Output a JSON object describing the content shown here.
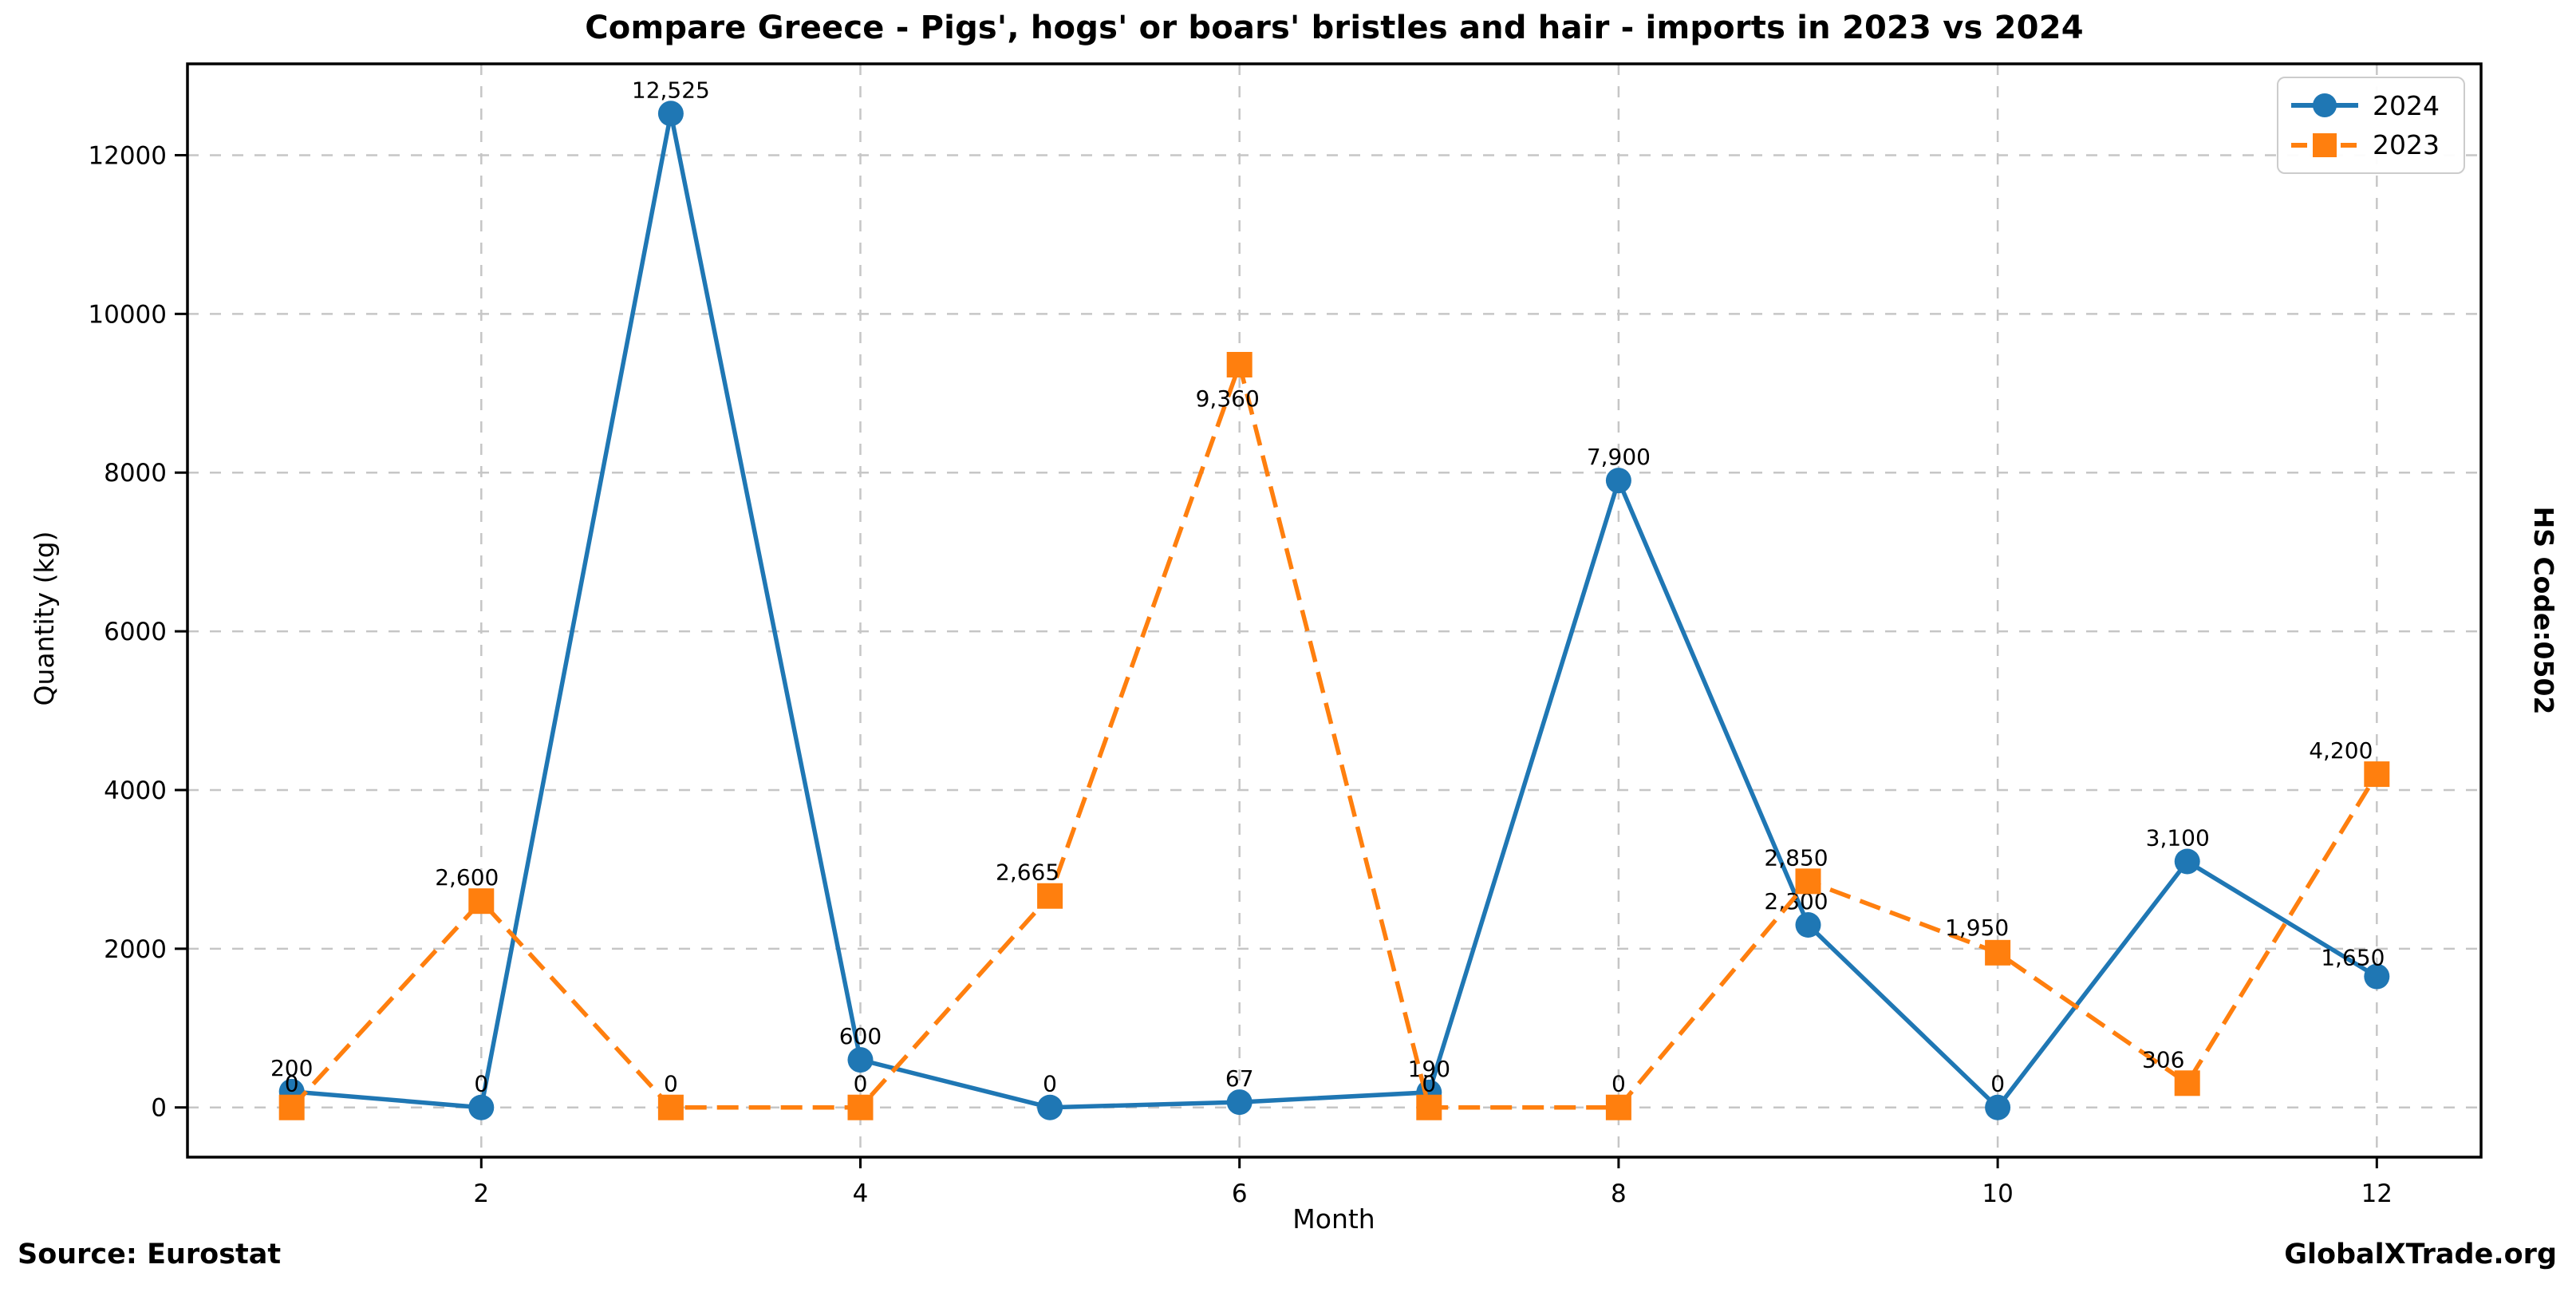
{
  "title": "Compare Greece - Pigs', hogs' or boars' bristles and hair - imports in 2023 vs 2024",
  "source_note": "Source: Eurostat",
  "watermark": "GlobalXTrade.org",
  "hs_code_label": "HS Code:0502",
  "chart_data": {
    "type": "line",
    "title": "Compare Greece - Pigs', hogs' or boars' bristles and hair - imports in 2023 vs 2024",
    "xlabel": "Month",
    "ylabel": "Quantity (kg)",
    "x": [
      1,
      2,
      3,
      4,
      5,
      6,
      7,
      8,
      9,
      10,
      11,
      12
    ],
    "xticks": [
      2,
      4,
      6,
      8,
      10,
      12
    ],
    "yticks": [
      0,
      2000,
      4000,
      6000,
      8000,
      10000,
      12000
    ],
    "ylim": [
      0,
      12525
    ],
    "grid": true,
    "grid_color": "#c6c6c6",
    "legend_position": "top-right",
    "series": [
      {
        "name": "2024",
        "color": "#1f77b4",
        "line_style": "solid",
        "marker": "circle",
        "values": [
          200,
          0,
          12525,
          600,
          0,
          67,
          190,
          7900,
          2300,
          0,
          3100,
          1650
        ],
        "labels": [
          "200",
          "0",
          "12,525",
          "600",
          "0",
          "67",
          "190",
          "7,900",
          "2,300",
          "0",
          "3,100",
          "1,650"
        ],
        "label_offsets": [
          null,
          null,
          null,
          null,
          null,
          null,
          null,
          null,
          [
            -15,
            -20
          ],
          null,
          [
            -12,
            -20
          ],
          [
            -30,
            -14
          ]
        ]
      },
      {
        "name": "2023",
        "color": "#ff7f0e",
        "line_style": "dashed",
        "marker": "square",
        "values": [
          0,
          2600,
          0,
          0,
          2665,
          9360,
          0,
          0,
          2850,
          1950,
          306,
          4200
        ],
        "labels": [
          "0",
          "2,600",
          "0",
          "0",
          "2,665",
          "9,360",
          "0",
          "0",
          "2,850",
          "1,950",
          "306",
          "4,200"
        ],
        "label_offsets": [
          null,
          [
            -18,
            -20
          ],
          null,
          null,
          [
            -28,
            -20
          ],
          [
            -15,
            52
          ],
          null,
          null,
          [
            -15,
            -20
          ],
          [
            -26,
            -22
          ],
          [
            -30,
            -20
          ],
          [
            -45,
            -20
          ]
        ]
      }
    ]
  }
}
